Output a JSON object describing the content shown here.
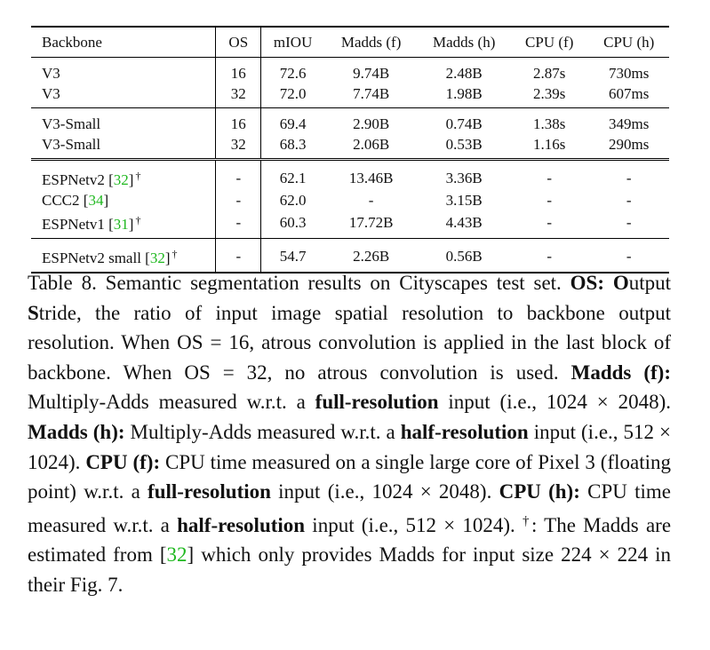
{
  "table": {
    "headers": [
      "Backbone",
      "OS",
      "mIOU",
      "Madds (f)",
      "Madds (h)",
      "CPU (f)",
      "CPU (h)"
    ],
    "groups": [
      [
        {
          "backbone": "V3",
          "cite": "",
          "dagger": "",
          "os": "16",
          "miou": "72.6",
          "madds_f": "9.74B",
          "madds_h": "2.48B",
          "cpu_f": "2.87s",
          "cpu_h": "730ms"
        },
        {
          "backbone": "V3",
          "cite": "",
          "dagger": "",
          "os": "32",
          "miou": "72.0",
          "madds_f": "7.74B",
          "madds_h": "1.98B",
          "cpu_f": "2.39s",
          "cpu_h": "607ms"
        }
      ],
      [
        {
          "backbone": "V3-Small",
          "cite": "",
          "dagger": "",
          "os": "16",
          "miou": "69.4",
          "madds_f": "2.90B",
          "madds_h": "0.74B",
          "cpu_f": "1.38s",
          "cpu_h": "349ms"
        },
        {
          "backbone": "V3-Small",
          "cite": "",
          "dagger": "",
          "os": "32",
          "miou": "68.3",
          "madds_f": "2.06B",
          "madds_h": "0.53B",
          "cpu_f": "1.16s",
          "cpu_h": "290ms"
        }
      ],
      [
        {
          "backbone": "ESPNetv2",
          "cite": "32",
          "dagger": "†",
          "os": "-",
          "miou": "62.1",
          "madds_f": "13.46B",
          "madds_h": "3.36B",
          "cpu_f": "-",
          "cpu_h": "-"
        },
        {
          "backbone": "CCC2",
          "cite": "34",
          "dagger": "",
          "os": "-",
          "miou": "62.0",
          "madds_f": "-",
          "madds_h": "3.15B",
          "cpu_f": "-",
          "cpu_h": "-"
        },
        {
          "backbone": "ESPNetv1",
          "cite": "31",
          "dagger": "†",
          "os": "-",
          "miou": "60.3",
          "madds_f": "17.72B",
          "madds_h": "4.43B",
          "cpu_f": "-",
          "cpu_h": "-"
        }
      ],
      [
        {
          "backbone": "ESPNetv2 small",
          "cite": "32",
          "dagger": "†",
          "os": "-",
          "miou": "54.7",
          "madds_f": "2.26B",
          "madds_h": "0.56B",
          "cpu_f": "-",
          "cpu_h": "-"
        }
      ]
    ]
  },
  "caption": {
    "label": "Table 8.",
    "intro": " Semantic segmentation results on Cityscapes test set. ",
    "os_term": "OS:",
    "os_O": "O",
    "os_utput": "utput ",
    "os_S": "S",
    "os_tride": "tride, the ratio of input image spatial resolution to backbone output resolution. When OS = 16, atrous convolution is applied in the last block of backbone. When OS = 32, no atrous convolution is used. ",
    "maddsf_term": "Madds (f):",
    "maddsf_text1": " Multiply-Adds measured w.r.t. a ",
    "full_res_1": "full-resolution",
    "maddsf_text2": " input (i.e., 1024 × 2048). ",
    "maddsh_term": "Madds (h):",
    "maddsh_text1": " Multiply-Adds measured w.r.t. a ",
    "half_res_1": "half-resolution",
    "maddsh_text2": " input (i.e., 512 × 1024). ",
    "cpuf_term": "CPU (f):",
    "cpuf_text1": " CPU time measured on a single large core of Pixel 3 (floating point) w.r.t. a ",
    "full_res_2": "full-resolution",
    "cpuf_text2": " input (i.e., 1024 × 2048). ",
    "cpuh_term": "CPU (h):",
    "cpuh_text1": " CPU time measured w.r.t. a ",
    "half_res_2": "half-resolution",
    "cpuh_text2": " input (i.e., 512 × 1024). ",
    "dagger": "†",
    "dagger_text1": ": The Madds are estimated from [",
    "dagger_cite": "32",
    "dagger_text2": "] which only provides Madds for input size 224 × 224 in their Fig. 7."
  }
}
